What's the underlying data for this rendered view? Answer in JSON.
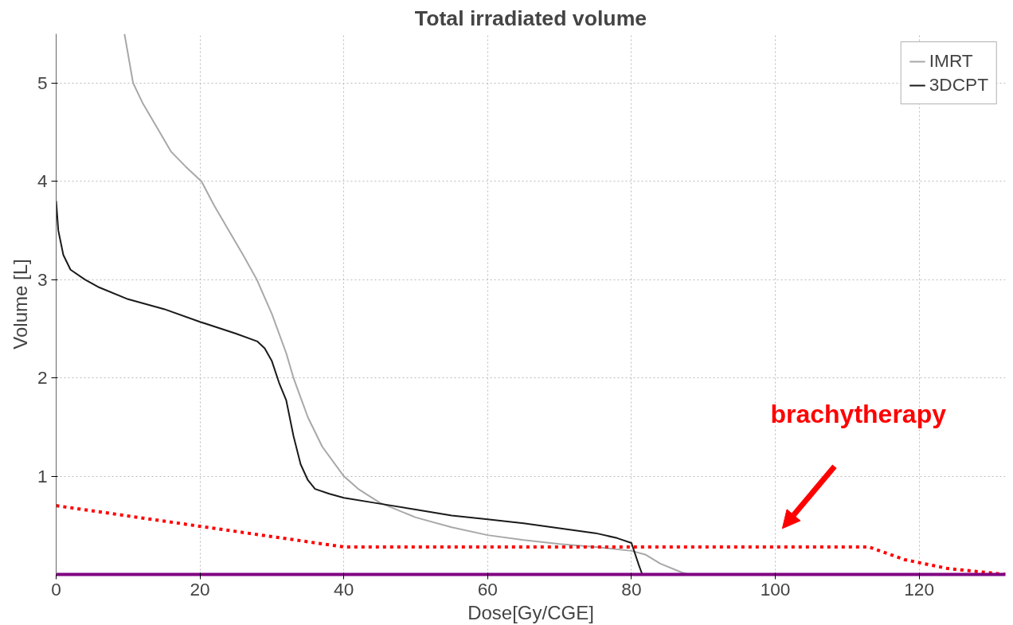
{
  "chart_data": {
    "type": "line",
    "title": "Total irradiated volume",
    "xlabel": "Dose[Gy/CGE]",
    "ylabel": "Volume [L]",
    "xlim": [
      0,
      132
    ],
    "ylim": [
      0,
      5.5
    ],
    "xticks": [
      0,
      20,
      40,
      60,
      80,
      100,
      120
    ],
    "yticks": [
      1,
      2,
      3,
      4,
      5
    ],
    "grid": true,
    "legend": "top right",
    "line_style": "solid",
    "series": [
      {
        "name": "IMRT",
        "color": "#a8a8a8",
        "x": [
          9.5,
          10.7,
          12,
          14.4,
          16,
          18,
          20.2,
          22,
          24,
          26,
          27.9,
          30,
          32,
          33,
          35,
          37,
          40,
          42,
          45,
          50,
          55,
          60,
          65,
          70,
          75,
          80,
          82,
          84,
          87,
          88
        ],
        "values": [
          5.5,
          5.0,
          4.8,
          4.5,
          4.3,
          4.15,
          4.0,
          3.75,
          3.5,
          3.25,
          3.0,
          2.65,
          2.25,
          2.0,
          1.6,
          1.3,
          1.0,
          0.87,
          0.73,
          0.58,
          0.48,
          0.4,
          0.35,
          0.31,
          0.28,
          0.24,
          0.2,
          0.11,
          0.02,
          0
        ]
      },
      {
        "name": "3DCPT",
        "color": "#1a1a1a",
        "x": [
          0,
          0.3,
          1,
          2,
          4,
          6,
          10,
          15,
          20,
          25,
          28,
          29,
          30,
          31,
          32,
          33,
          34,
          35,
          36,
          38,
          40,
          45,
          50,
          55,
          60,
          65,
          70,
          75,
          78,
          80,
          81,
          81.5
        ],
        "values": [
          3.8,
          3.5,
          3.25,
          3.1,
          3.0,
          2.92,
          2.8,
          2.7,
          2.57,
          2.45,
          2.37,
          2.3,
          2.17,
          1.95,
          1.77,
          1.41,
          1.12,
          0.96,
          0.87,
          0.82,
          0.78,
          0.72,
          0.66,
          0.6,
          0.56,
          0.52,
          0.47,
          0.42,
          0.37,
          0.32,
          0.1,
          0
        ]
      },
      {
        "name": "brachytherapy",
        "color": "#ff0000",
        "line_style": "dotted",
        "x": [
          0,
          40,
          113,
          118,
          124,
          132
        ],
        "values": [
          0.7,
          0.28,
          0.28,
          0.15,
          0.06,
          0
        ]
      }
    ]
  }
}
